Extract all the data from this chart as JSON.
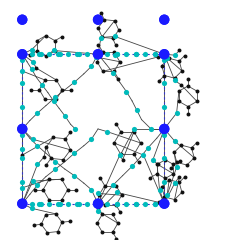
{
  "background": "#ffffff",
  "fig_width": 2.32,
  "fig_height": 2.4,
  "dpi": 100,
  "uc_color": "#3333cc",
  "uc_lw": 0.8,
  "cu_color": "#1a1aff",
  "cu_size": 55,
  "n_color": "#00bbbb",
  "n_size": 14,
  "c_color": "#111111",
  "c_size": 8,
  "bond_color": "#444444",
  "bond_lw": 0.6,
  "xlim": [
    -0.02,
    0.82
  ],
  "ylim": [
    -0.02,
    0.97
  ]
}
